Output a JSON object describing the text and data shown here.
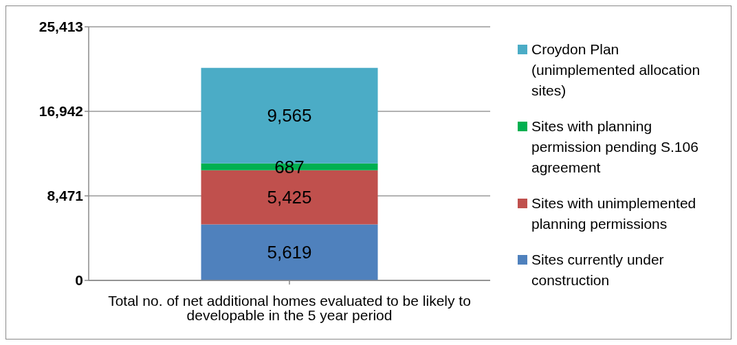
{
  "chart_data": {
    "type": "bar",
    "stacked": true,
    "categories": [
      "Total no. of net additional homes evaluated to be likely to developable in the 5 year period"
    ],
    "series": [
      {
        "name": "Sites currently under construction",
        "color": "#4f81bd",
        "values": [
          5619
        ],
        "value_labels": [
          "5,619"
        ]
      },
      {
        "name": "Sites with unimplemented planning permissions",
        "color": "#c0504d",
        "values": [
          5425
        ],
        "value_labels": [
          "5,425"
        ]
      },
      {
        "name": "Sites with planning permission pending S.106 agreement",
        "color": "#00b050",
        "values": [
          687
        ],
        "value_labels": [
          "687"
        ]
      },
      {
        "name": "Croydon Plan (unimplemented allocation sites)",
        "color": "#4bacc6",
        "values": [
          9565
        ],
        "value_labels": [
          "9,565"
        ]
      }
    ],
    "ylim": [
      0,
      25413
    ],
    "yticks": [
      {
        "value": 0,
        "label": "0"
      },
      {
        "value": 8471,
        "label": "8,471"
      },
      {
        "value": 16942,
        "label": "16,942"
      },
      {
        "value": 25413,
        "label": "25,413"
      }
    ],
    "grid": "y",
    "legend": "right"
  }
}
